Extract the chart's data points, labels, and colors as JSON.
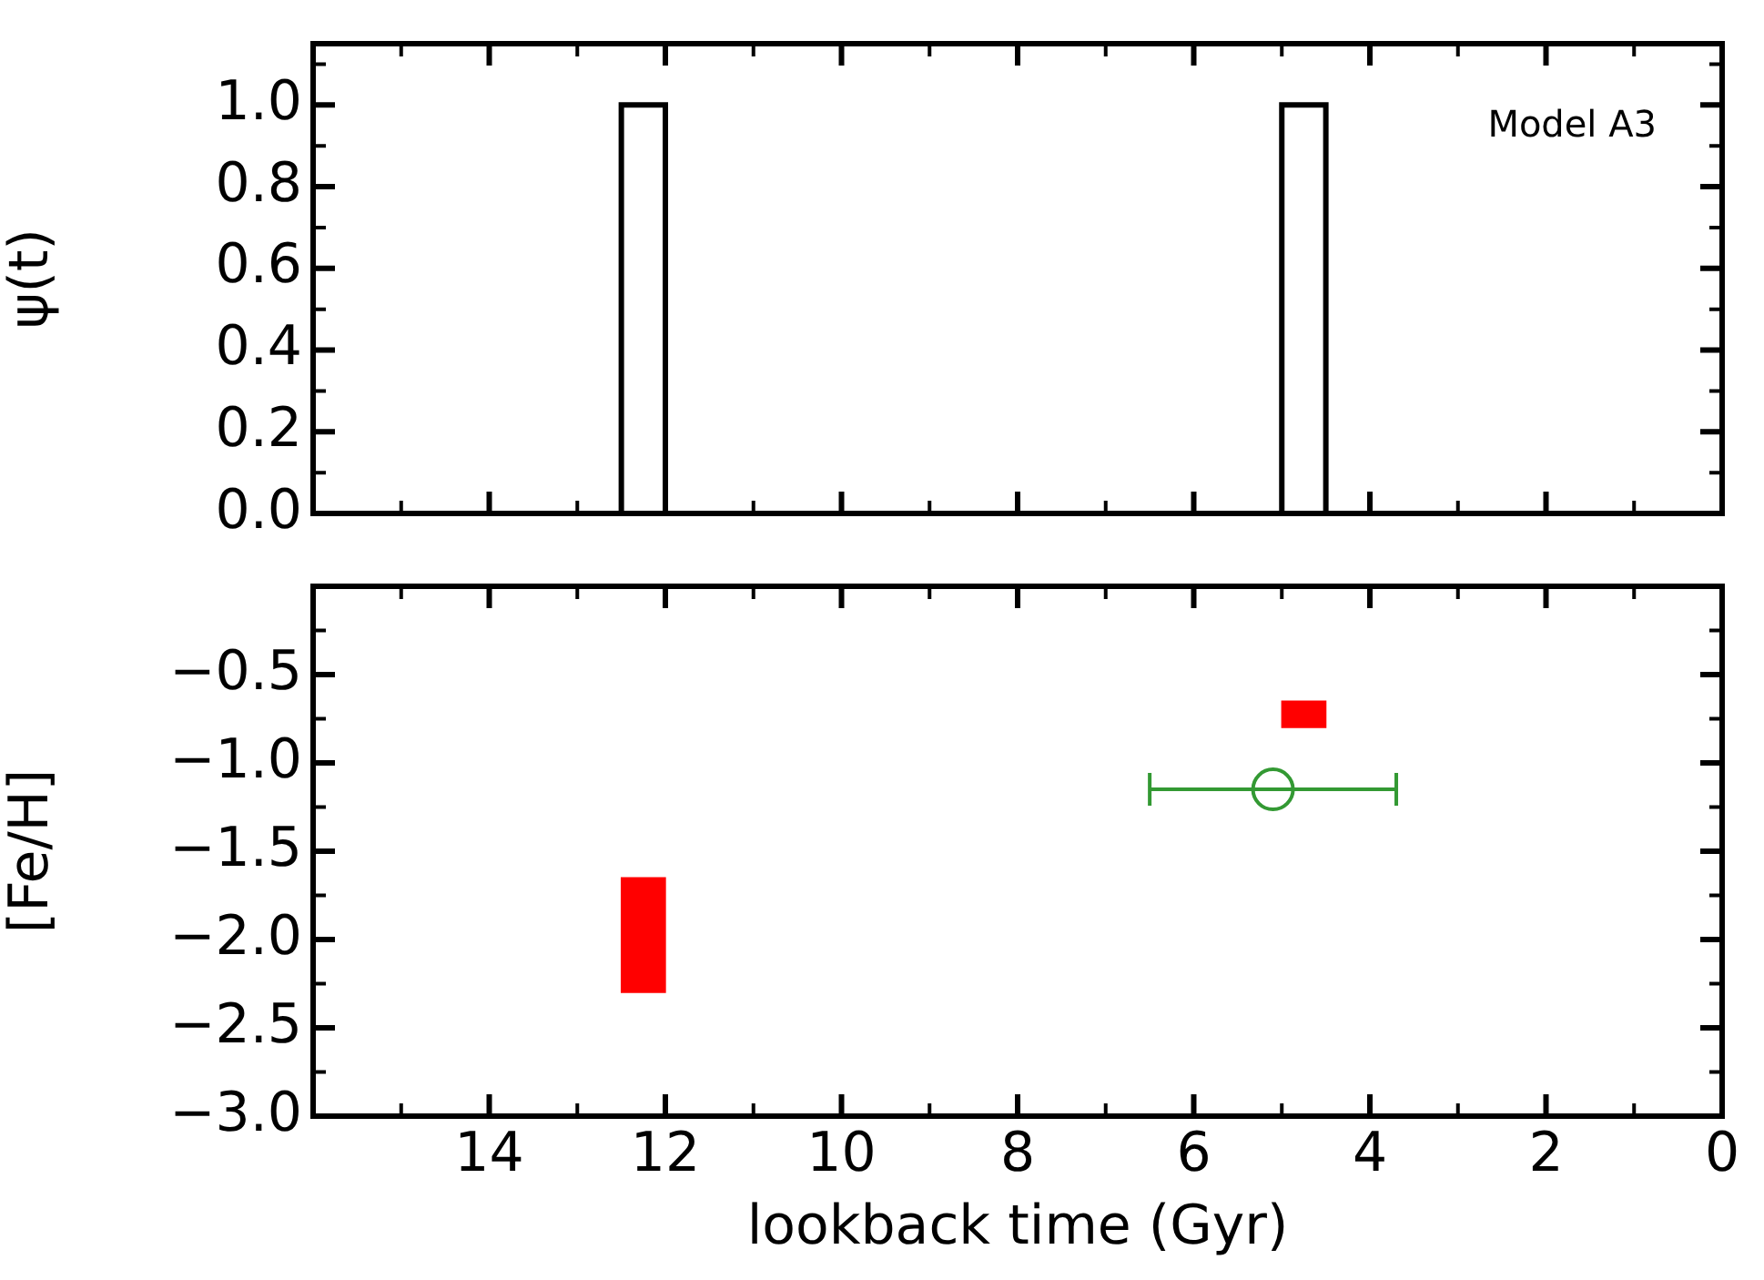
{
  "chart_data": [
    {
      "type": "step",
      "ylabel": "ψ(t)",
      "xlim": [
        16,
        0
      ],
      "xticks": [
        14,
        12,
        10,
        8,
        6,
        4,
        2,
        0
      ],
      "ylim": [
        0,
        1.15
      ],
      "yticks": [
        {
          "value": 0,
          "label": "0.0"
        },
        0.2,
        0.4,
        0.6,
        0.8,
        {
          "value": 1,
          "label": "1.0"
        }
      ],
      "tick_labels": "y",
      "annotations": [
        "Model A3"
      ],
      "grid": false,
      "legend": false,
      "series": [
        {
          "color": "#000000",
          "x": [
            16,
            12.5,
            12.0,
            5.0,
            4.5,
            0
          ],
          "values": [
            0,
            1,
            0,
            1,
            0,
            0
          ]
        }
      ]
    },
    {
      "type": "scatter",
      "xlabel": "lookback time (Gyr)",
      "ylabel": "[Fe/H]",
      "xlim": [
        16,
        0
      ],
      "xticks": [
        14,
        12,
        10,
        8,
        6,
        4,
        2,
        0
      ],
      "ylim": [
        -3.0,
        0
      ],
      "yticks": [
        {
          "value": -3,
          "label": "−3.0"
        },
        {
          "value": -2.5,
          "label": "−2.5"
        },
        {
          "value": -2,
          "label": "−2.0"
        },
        {
          "value": -1.5,
          "label": "−1.5"
        },
        {
          "value": -1,
          "label": "−1.0"
        },
        {
          "value": -0.5,
          "label": "−0.5"
        }
      ],
      "grid": false,
      "legend": false,
      "series": [
        {
          "type": "bar",
          "color": "#ff0000",
          "x": [
            12.25,
            4.75
          ],
          "base": [
            -2.3,
            -0.8
          ],
          "values": [
            0.65,
            0.15
          ]
        },
        {
          "type": "scatter",
          "color": "#339933",
          "x": [
            5.1
          ],
          "values": [
            -1.15
          ],
          "xerrors": [
            1.4
          ],
          "marker": "circle"
        }
      ]
    }
  ]
}
